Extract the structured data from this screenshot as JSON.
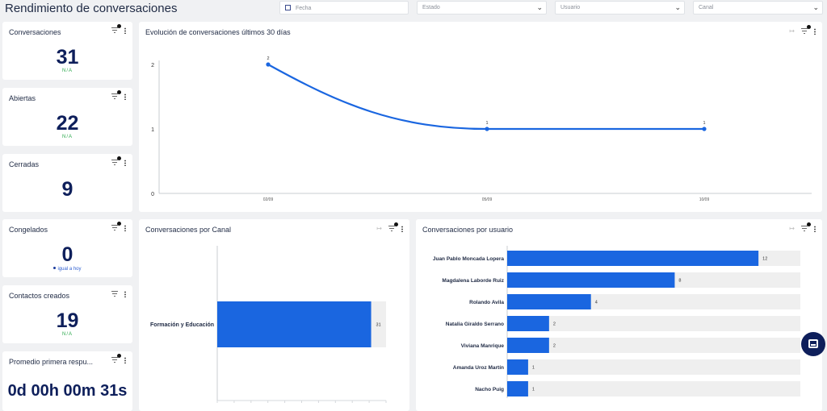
{
  "page_title": "Rendimiento de conversaciones",
  "filters": {
    "fecha": "Fecha",
    "estado": "Estado",
    "usuario": "Usuario",
    "canal": "Canal"
  },
  "kpis": [
    {
      "title": "Conversaciones",
      "value": "31",
      "sub": "N/A"
    },
    {
      "title": "Abiertas",
      "value": "22",
      "sub": "N/A"
    },
    {
      "title": "Cerradas",
      "value": "9",
      "sub": ""
    },
    {
      "title": "Congelados",
      "value": "0",
      "sub": "igual a hoy"
    },
    {
      "title": "Contactos creados",
      "value": "19",
      "sub": "N/A"
    },
    {
      "title": "Promedio primera respu...",
      "value": "0d 00h 00m 31s",
      "sub": ""
    }
  ],
  "chart_data": [
    {
      "type": "line",
      "title": "Evolución de conversaciones últimos 30 días",
      "x": [
        "02/09",
        "05/09",
        "10/09"
      ],
      "series": [
        {
          "values": [
            2,
            1,
            1
          ]
        }
      ],
      "yticks": [
        "0",
        "1",
        "2"
      ],
      "ylim": [
        0,
        2
      ],
      "data_labels": [
        "2",
        "1",
        "1"
      ],
      "color": "#1a66e0"
    },
    {
      "type": "bar",
      "orientation": "horizontal",
      "title": "Conversaciones por Canal",
      "categories": [
        "Formación y Educación"
      ],
      "values": [
        31
      ],
      "max": 34,
      "color": "#1a66e0"
    },
    {
      "type": "bar",
      "orientation": "horizontal",
      "title": "Conversaciones por usuario",
      "categories": [
        "Juan Pablo Moncada Lopera",
        "Magdalena Laborde Ruiz",
        "Rolando Avila",
        "Natalia Giraldo Serrano",
        "Viviana Manrique",
        "Amanda Uroz Martín",
        "Nacho Puig"
      ],
      "values": [
        12,
        8,
        4,
        2,
        2,
        1,
        1
      ],
      "max": 14,
      "color": "#1a66e0"
    }
  ]
}
